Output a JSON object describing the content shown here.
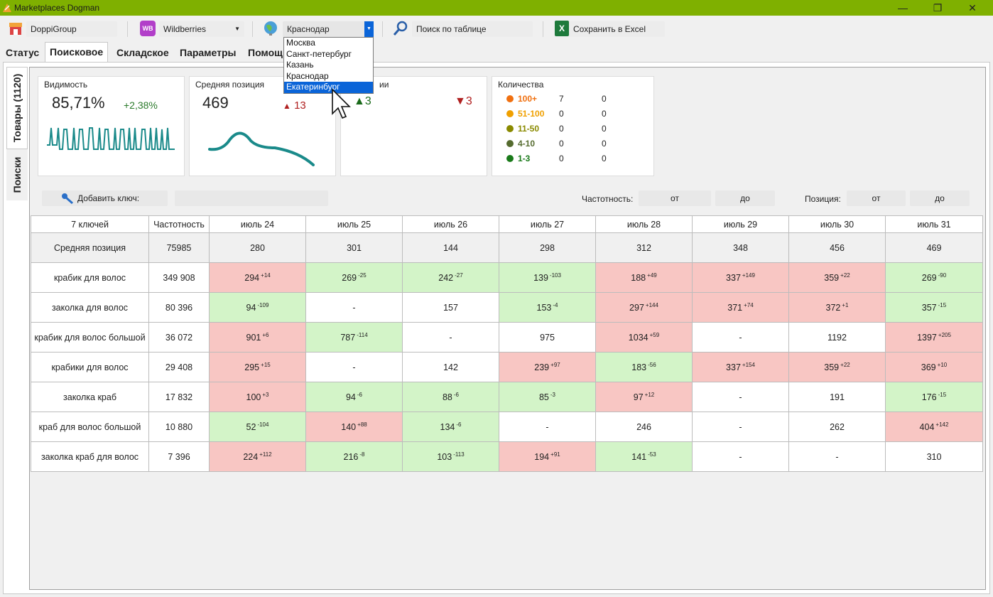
{
  "window": {
    "title": "Marketplaces Dogman"
  },
  "toolbar": {
    "company": "DoppiGroup",
    "marketplace_badge": "WB",
    "marketplace": "Wildberries",
    "city": "Краснодар",
    "search_label": "Поиск по таблице",
    "excel_label": "Сохранить в Excel"
  },
  "city_dropdown": {
    "options": [
      "Москва",
      "Санкт-петербург",
      "Казань",
      "Краснодар",
      "Екатеринбург"
    ],
    "highlighted": "Екатеринбург"
  },
  "tabs": [
    "Статус",
    "Поисковое",
    "Складское",
    "Параметры",
    "Помощ"
  ],
  "side_tabs": [
    "Товары (1120)",
    "Поиски"
  ],
  "cards": {
    "visibility": {
      "caption": "Видимость",
      "value": "85,71%",
      "delta": "+2,38%"
    },
    "avg_position": {
      "caption": "Средняя позиция",
      "value": "469",
      "delta": "13"
    },
    "positions": {
      "caption": "ии",
      "up": "3",
      "down": "3"
    },
    "quantity": {
      "caption": "Количества",
      "rows": [
        {
          "label": "100+",
          "a": "7",
          "b": "0",
          "color": "#f07010"
        },
        {
          "label": "51-100",
          "a": "0",
          "b": "0",
          "color": "#f0a000"
        },
        {
          "label": "11-50",
          "a": "0",
          "b": "0",
          "color": "#8a8a00"
        },
        {
          "label": "4-10",
          "a": "0",
          "b": "0",
          "color": "#556b2f"
        },
        {
          "label": "1-3",
          "a": "0",
          "b": "0",
          "color": "#1a7a1a"
        }
      ]
    }
  },
  "filters": {
    "add_key_label": "Добавить ключ:",
    "freq_label": "Частотность:",
    "pos_label": "Позиция:",
    "from": "от",
    "to": "до"
  },
  "table": {
    "headers": [
      "7 ключей",
      "Частотность",
      "июль 24",
      "июль 25",
      "июль 26",
      "июль 27",
      "июль 28",
      "июль 29",
      "июль 30",
      "июль 31"
    ],
    "avg_row": [
      "Средняя позиция",
      "75985",
      "280",
      "301",
      "144",
      "298",
      "312",
      "348",
      "456",
      "469"
    ],
    "rows": [
      {
        "key": "крабик для волос",
        "freq": "349 908",
        "cells": [
          {
            "v": "294",
            "d": "+14",
            "s": "up"
          },
          {
            "v": "269",
            "d": "-25",
            "s": "down"
          },
          {
            "v": "242",
            "d": "-27",
            "s": "down"
          },
          {
            "v": "139",
            "d": "-103",
            "s": "down"
          },
          {
            "v": "188",
            "d": "+49",
            "s": "up"
          },
          {
            "v": "337",
            "d": "+149",
            "s": "up"
          },
          {
            "v": "359",
            "d": "+22",
            "s": "up"
          },
          {
            "v": "269",
            "d": "-90",
            "s": "down"
          }
        ]
      },
      {
        "key": "заколка для волос",
        "freq": "80 396",
        "cells": [
          {
            "v": "94",
            "d": "-109",
            "s": "down"
          },
          {
            "v": "-",
            "d": "",
            "s": ""
          },
          {
            "v": "157",
            "d": "",
            "s": ""
          },
          {
            "v": "153",
            "d": "-4",
            "s": "down"
          },
          {
            "v": "297",
            "d": "+144",
            "s": "up"
          },
          {
            "v": "371",
            "d": "+74",
            "s": "up"
          },
          {
            "v": "372",
            "d": "+1",
            "s": "up"
          },
          {
            "v": "357",
            "d": "-15",
            "s": "down"
          }
        ]
      },
      {
        "key": "крабик для волос большой",
        "freq": "36 072",
        "cells": [
          {
            "v": "901",
            "d": "+6",
            "s": "up"
          },
          {
            "v": "787",
            "d": "-114",
            "s": "down"
          },
          {
            "v": "-",
            "d": "",
            "s": ""
          },
          {
            "v": "975",
            "d": "",
            "s": ""
          },
          {
            "v": "1034",
            "d": "+59",
            "s": "up"
          },
          {
            "v": "-",
            "d": "",
            "s": ""
          },
          {
            "v": "1192",
            "d": "",
            "s": ""
          },
          {
            "v": "1397",
            "d": "+205",
            "s": "up"
          }
        ]
      },
      {
        "key": "крабики для волос",
        "freq": "29 408",
        "cells": [
          {
            "v": "295",
            "d": "+15",
            "s": "up"
          },
          {
            "v": "-",
            "d": "",
            "s": ""
          },
          {
            "v": "142",
            "d": "",
            "s": ""
          },
          {
            "v": "239",
            "d": "+97",
            "s": "up"
          },
          {
            "v": "183",
            "d": "-56",
            "s": "down"
          },
          {
            "v": "337",
            "d": "+154",
            "s": "up"
          },
          {
            "v": "359",
            "d": "+22",
            "s": "up"
          },
          {
            "v": "369",
            "d": "+10",
            "s": "up"
          }
        ]
      },
      {
        "key": "заколка краб",
        "freq": "17 832",
        "cells": [
          {
            "v": "100",
            "d": "+3",
            "s": "up"
          },
          {
            "v": "94",
            "d": "-6",
            "s": "down"
          },
          {
            "v": "88",
            "d": "-6",
            "s": "down"
          },
          {
            "v": "85",
            "d": "-3",
            "s": "down"
          },
          {
            "v": "97",
            "d": "+12",
            "s": "up"
          },
          {
            "v": "-",
            "d": "",
            "s": ""
          },
          {
            "v": "191",
            "d": "",
            "s": ""
          },
          {
            "v": "176",
            "d": "-15",
            "s": "down"
          }
        ]
      },
      {
        "key": "краб для волос большой",
        "freq": "10 880",
        "cells": [
          {
            "v": "52",
            "d": "-104",
            "s": "down"
          },
          {
            "v": "140",
            "d": "+88",
            "s": "up"
          },
          {
            "v": "134",
            "d": "-6",
            "s": "down"
          },
          {
            "v": "-",
            "d": "",
            "s": ""
          },
          {
            "v": "246",
            "d": "",
            "s": ""
          },
          {
            "v": "-",
            "d": "",
            "s": ""
          },
          {
            "v": "262",
            "d": "",
            "s": ""
          },
          {
            "v": "404",
            "d": "+142",
            "s": "up"
          }
        ]
      },
      {
        "key": "заколка краб для волос",
        "freq": "7 396",
        "cells": [
          {
            "v": "224",
            "d": "+112",
            "s": "up"
          },
          {
            "v": "216",
            "d": "-8",
            "s": "down"
          },
          {
            "v": "103",
            "d": "-113",
            "s": "down"
          },
          {
            "v": "194",
            "d": "+91",
            "s": "up"
          },
          {
            "v": "141",
            "d": "-53",
            "s": "down"
          },
          {
            "v": "-",
            "d": "",
            "s": ""
          },
          {
            "v": "-",
            "d": "",
            "s": ""
          },
          {
            "v": "310",
            "d": "",
            "s": ""
          }
        ]
      }
    ]
  },
  "colors": {
    "titlebar": "#7fb000",
    "up": "#f8c6c3",
    "down": "#d3f4c8",
    "sparkline": "#1a8a8a"
  }
}
